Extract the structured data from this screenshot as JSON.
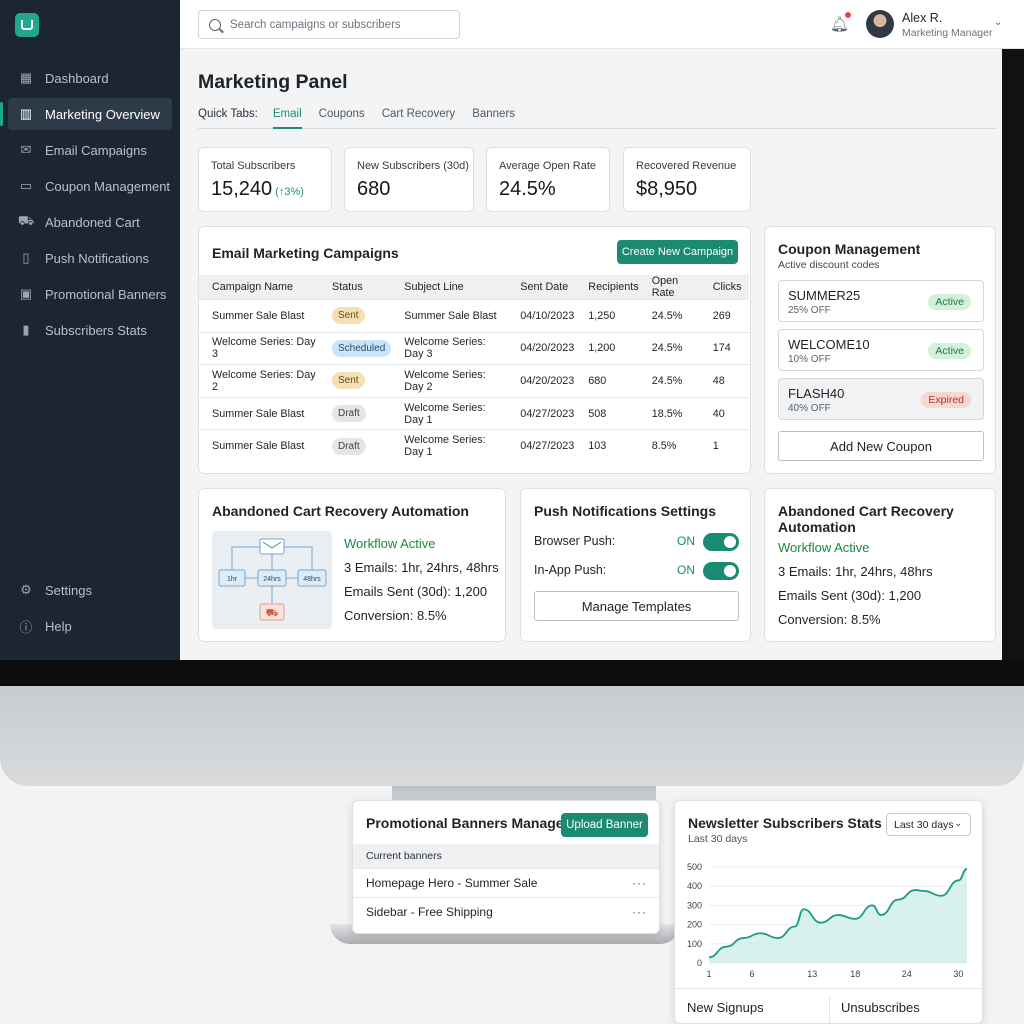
{
  "sidebar": {
    "logo_icon": "brand-logo-icon",
    "items": [
      {
        "label": "Dashboard",
        "icon": "grid-icon"
      },
      {
        "label": "Marketing Overview",
        "icon": "bar-chart-icon"
      },
      {
        "label": "Email Campaigns",
        "icon": "mail-icon"
      },
      {
        "label": "Coupon Management",
        "icon": "ticket-icon"
      },
      {
        "label": "Abandoned Cart",
        "icon": "cart-icon"
      },
      {
        "label": "Push Notifications",
        "icon": "phone-icon"
      },
      {
        "label": "Promotional Banners",
        "icon": "image-icon"
      },
      {
        "label": "Subscribers Stats",
        "icon": "stats-icon"
      }
    ],
    "bottom": [
      {
        "label": "Settings",
        "icon": "gear-icon"
      },
      {
        "label": "Help",
        "icon": "help-icon"
      }
    ],
    "active_index": 1
  },
  "header": {
    "search_placeholder": "Search campaigns or subscribers",
    "user_name": "Alex R.",
    "user_role": "Marketing Manager"
  },
  "page": {
    "title": "Marketing Panel",
    "quick_tabs_label": "Quick Tabs:",
    "tabs": [
      "Email",
      "Coupons",
      "Cart Recovery",
      "Banners"
    ],
    "active_tab": "Email"
  },
  "stats": [
    {
      "label": "Total Subscribers",
      "value": "15,240",
      "delta": "(↑3%)"
    },
    {
      "label": "New Subscribers (30d)",
      "value": "680"
    },
    {
      "label": "Average Open Rate",
      "value": "24.5%"
    },
    {
      "label": "Recovered Revenue",
      "value": "$8,950"
    }
  ],
  "campaigns": {
    "title": "Email Marketing Campaigns",
    "create_label": "Create New Campaign",
    "columns": [
      "Campaign Name",
      "Status",
      "Subject Line",
      "Sent Date",
      "Recipients",
      "Open Rate",
      "Clicks"
    ],
    "rows": [
      {
        "name": "Summer Sale Blast",
        "status": "Sent",
        "subject": "Summer Sale Blast",
        "date": "04/10/2023",
        "recipients": "1,250",
        "open": "24.5%",
        "clicks": "269"
      },
      {
        "name": "Welcome Series: Day 3",
        "status": "Scheduled",
        "subject": "Welcome Series: Day 3",
        "date": "04/20/2023",
        "recipients": "1,200",
        "open": "24.5%",
        "clicks": "174"
      },
      {
        "name": "Welcome Series: Day 2",
        "status": "Sent",
        "subject": "Welcome Series: Day 2",
        "date": "04/20/2023",
        "recipients": "680",
        "open": "24.5%",
        "clicks": "48"
      },
      {
        "name": "Summer Sale Blast",
        "status": "Draft",
        "subject": "Welcome Series: Day 1",
        "date": "04/27/2023",
        "recipients": "508",
        "open": "18.5%",
        "clicks": "40"
      },
      {
        "name": "Summer Sale Blast",
        "status": "Draft",
        "subject": "Welcome Series: Day 1",
        "date": "04/27/2023",
        "recipients": "103",
        "open": "8.5%",
        "clicks": "1"
      }
    ]
  },
  "coupons": {
    "title": "Coupon Management",
    "subtitle": "Active discount codes",
    "items": [
      {
        "code": "SUMMER25",
        "off": "25% OFF",
        "status": "Active"
      },
      {
        "code": "WELCOME10",
        "off": "10% OFF",
        "status": "Active"
      },
      {
        "code": "FLASH40",
        "off": "40% OFF",
        "status": "Expired"
      }
    ],
    "add_label": "Add New Coupon"
  },
  "cart_automation": {
    "title": "Abandoned Cart Recovery Automation",
    "status": "Workflow Active",
    "emails": "3 Emails: 1hr, 24hrs, 48hrs",
    "sent": "Emails Sent (30d): 1,200",
    "conversion": "Conversion: 8.5%",
    "workflow_nodes": [
      "1hr",
      "24hrs",
      "48hrs"
    ]
  },
  "push": {
    "title": "Push Notifications Settings",
    "browser_label": "Browser Push:",
    "browser_state": "ON",
    "inapp_label": "In-App Push:",
    "inapp_state": "ON",
    "manage_label": "Manage Templates"
  },
  "cart_automation_2": {
    "title_line1": "Abandoned Cart Recovery",
    "title_line2": "Automation",
    "status": "Workflow Active",
    "emails": "3 Emails: 1hr, 24hrs, 48hrs",
    "sent": "Emails Sent (30d): 1,200",
    "conversion": "Conversion: 8.5%"
  },
  "banners": {
    "title": "Promotional Banners Manager",
    "upload_label": "Upload Banner",
    "section_label": "Current banners",
    "items": [
      "Homepage Hero - Summer Sale",
      "Sidebar - Free Shipping"
    ]
  },
  "newsletter": {
    "title": "Newsletter Subscribers Stats",
    "subtitle": "Last 30 days",
    "range_label": "Last 30 days",
    "footer_left": "New Signups",
    "footer_right": "Unsubscribes"
  },
  "chart_data": {
    "type": "area",
    "title": "",
    "xlabel": "",
    "ylabel": "",
    "x_ticks": [
      "1",
      "6",
      "13",
      "18",
      "24",
      "30"
    ],
    "y_ticks": [
      0,
      100,
      200,
      300,
      400,
      500
    ],
    "xlim": [
      1,
      31
    ],
    "ylim": [
      0,
      500
    ],
    "grid": true,
    "series": [
      {
        "x": [
          1,
          3,
          5,
          7,
          9,
          11,
          12,
          14,
          16,
          18,
          20,
          21,
          23,
          25,
          26,
          28,
          30,
          31
        ],
        "values": [
          30,
          85,
          130,
          155,
          130,
          190,
          280,
          210,
          250,
          230,
          300,
          250,
          330,
          380,
          375,
          350,
          430,
          490
        ]
      }
    ],
    "color": "#1f9a86"
  }
}
